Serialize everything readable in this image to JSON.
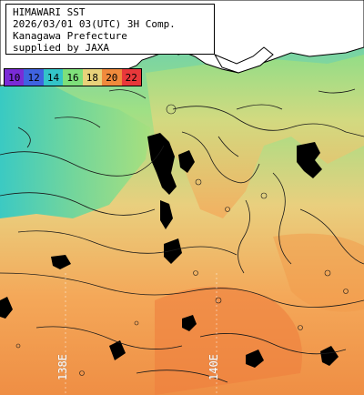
{
  "info": {
    "line1": "HIMAWARI SST",
    "line2": "2026/03/01 03(UTC) 3H Comp.",
    "line3": "Kanagawa Prefecture",
    "line4": "supplied by JAXA"
  },
  "legend": {
    "items": [
      {
        "label": "10",
        "color": "#7a2bd6"
      },
      {
        "label": "12",
        "color": "#3f63e0"
      },
      {
        "label": "14",
        "color": "#33c4c8"
      },
      {
        "label": "16",
        "color": "#7ee07a"
      },
      {
        "label": "18",
        "color": "#e8d27a"
      },
      {
        "label": "20",
        "color": "#f08a3c"
      },
      {
        "label": "22",
        "color": "#e8383a"
      }
    ]
  },
  "axis": {
    "lon1": "138E",
    "lon2": "140E"
  },
  "colors": {
    "land": "#ffffff",
    "cloud": "#000000",
    "contour": "#1a1a1a",
    "sea_cool": "#6fd6a4",
    "sea_mid": "#a8e07a",
    "sea_warm": "#f6b25a",
    "sea_hot": "#f08b3f"
  }
}
